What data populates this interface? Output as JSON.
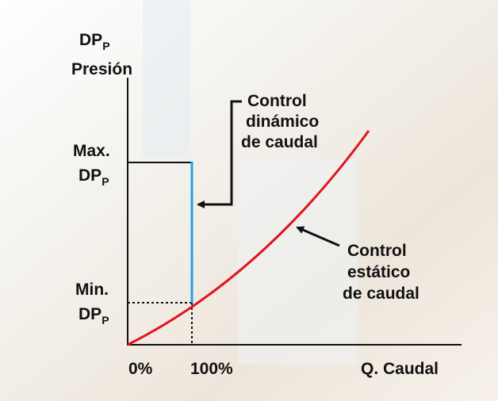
{
  "y_axis": {
    "label": {
      "main": "DP",
      "sub": "P"
    },
    "title": "Presión"
  },
  "max_label": {
    "line1": "Max.",
    "main": "DP",
    "sub": "P"
  },
  "min_label": {
    "line1": "Min.",
    "main": "DP",
    "sub": "P"
  },
  "x_axis": {
    "start": "0%",
    "mark": "100%",
    "title": "Q. Caudal"
  },
  "dynamic_note": [
    "Control",
    "dinámico",
    "de caudal"
  ],
  "static_note": [
    "Control",
    "estático",
    "de caudal"
  ]
}
